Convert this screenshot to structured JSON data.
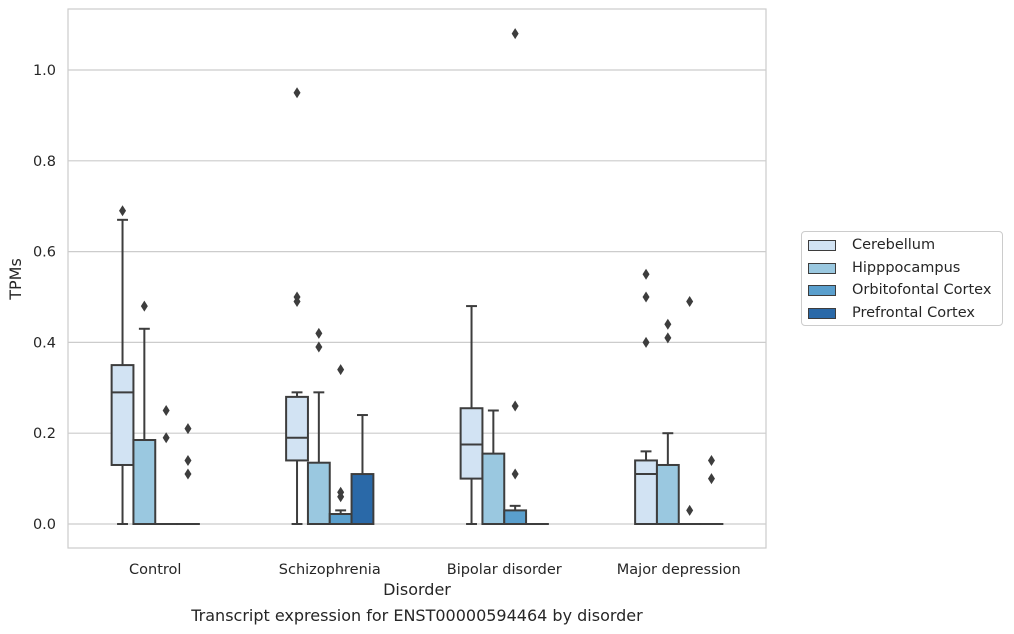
{
  "chart_data": {
    "type": "box",
    "xlabel": "Disorder",
    "ylabel": "TPMs",
    "ylim": [
      -0.05,
      1.14
    ],
    "yticks": [
      0.0,
      0.2,
      0.4,
      0.6,
      0.8,
      1.0
    ],
    "ytick_labels": [
      "0.0",
      "0.2",
      "0.4",
      "0.6",
      "0.8",
      "1.0"
    ],
    "grid": "horizontal",
    "legend_position": "right",
    "categories": [
      "Control",
      "Schizophrenia",
      "Bipolar disorder",
      "Major depression"
    ],
    "series": [
      {
        "name": "Cerebellum",
        "color": "#d2e3f3",
        "boxes": [
          {
            "min": 0.0,
            "q1": 0.13,
            "median": 0.29,
            "q3": 0.35,
            "max": 0.67,
            "outliers": [
              0.69
            ]
          },
          {
            "min": 0.0,
            "q1": 0.14,
            "median": 0.19,
            "q3": 0.28,
            "max": 0.29,
            "outliers": [
              0.5,
              0.49,
              0.95
            ]
          },
          {
            "min": 0.0,
            "q1": 0.1,
            "median": 0.175,
            "q3": 0.255,
            "max": 0.48,
            "outliers": []
          },
          {
            "min": 0.0,
            "q1": 0.0,
            "median": 0.11,
            "q3": 0.14,
            "max": 0.16,
            "outliers": [
              0.4,
              0.5,
              0.55
            ]
          }
        ]
      },
      {
        "name": "Hipppocampus",
        "color": "#9ac8e0",
        "boxes": [
          {
            "min": 0.0,
            "q1": 0.0,
            "median": 0.0,
            "q3": 0.185,
            "max": 0.43,
            "outliers": [
              0.48
            ]
          },
          {
            "min": 0.0,
            "q1": 0.0,
            "median": 0.0,
            "q3": 0.135,
            "max": 0.29,
            "outliers": [
              0.39,
              0.42
            ]
          },
          {
            "min": 0.0,
            "q1": 0.0,
            "median": 0.0,
            "q3": 0.155,
            "max": 0.25,
            "outliers": []
          },
          {
            "min": 0.0,
            "q1": 0.0,
            "median": 0.0,
            "q3": 0.13,
            "max": 0.2,
            "outliers": [
              0.41,
              0.44
            ]
          }
        ]
      },
      {
        "name": "Orbitofontal Cortex",
        "color": "#5a9fcd",
        "boxes": [
          {
            "min": 0.0,
            "q1": 0.0,
            "median": 0.0,
            "q3": 0.0,
            "max": 0.0,
            "outliers": [
              0.19,
              0.25
            ]
          },
          {
            "min": 0.0,
            "q1": 0.0,
            "median": 0.0,
            "q3": 0.022,
            "max": 0.03,
            "outliers": [
              0.06,
              0.07,
              0.34
            ]
          },
          {
            "min": 0.0,
            "q1": 0.0,
            "median": 0.0,
            "q3": 0.03,
            "max": 0.04,
            "outliers": [
              0.11,
              0.26,
              1.08
            ]
          },
          {
            "min": 0.0,
            "q1": 0.0,
            "median": 0.0,
            "q3": 0.0,
            "max": 0.0,
            "outliers": [
              0.03,
              0.49
            ]
          }
        ]
      },
      {
        "name": "Prefrontal Cortex",
        "color": "#2a69a8",
        "boxes": [
          {
            "min": 0.0,
            "q1": 0.0,
            "median": 0.0,
            "q3": 0.0,
            "max": 0.0,
            "outliers": [
              0.11,
              0.14,
              0.21
            ]
          },
          {
            "min": 0.0,
            "q1": 0.0,
            "median": 0.0,
            "q3": 0.11,
            "max": 0.24,
            "outliers": []
          },
          {
            "min": 0.0,
            "q1": 0.0,
            "median": 0.0,
            "q3": 0.0,
            "max": 0.0,
            "outliers": []
          },
          {
            "min": 0.0,
            "q1": 0.0,
            "median": 0.0,
            "q3": 0.0,
            "max": 0.0,
            "outliers": [
              0.1,
              0.14
            ]
          }
        ]
      }
    ],
    "caption": "Transcript expression for ENST00000594464 by disorder"
  }
}
